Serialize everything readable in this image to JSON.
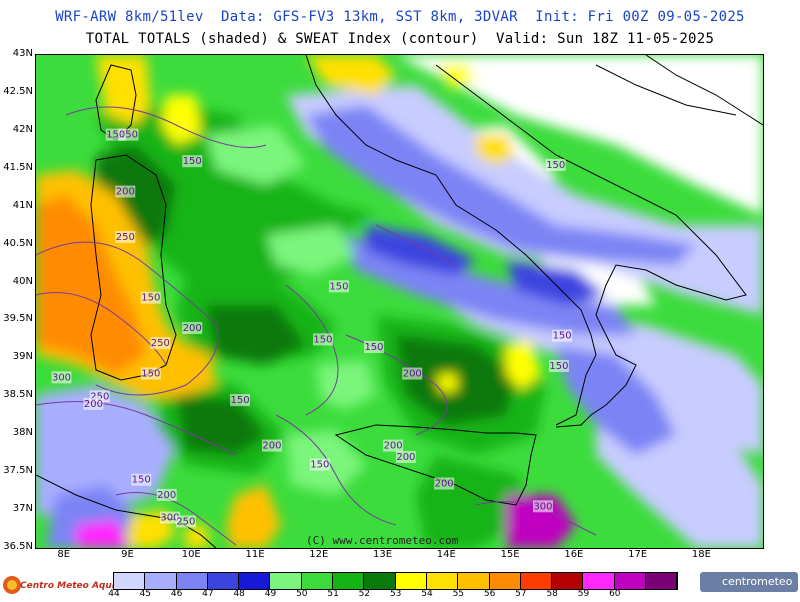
{
  "header": {
    "line1": "WRF-ARW 8km/51lev  Data: GFS-FV3 13km, SST 8km, 3DVAR  Init: Fri 00Z 09-05-2025",
    "line2": "TOTAL TOTALS (shaded) & SWEAT Index (contour)  Valid: Sun 18Z 11-05-2025"
  },
  "axes": {
    "lat_labels": [
      "43N",
      "42.5N",
      "42N",
      "41.5N",
      "41N",
      "40.5N",
      "40N",
      "39.5N",
      "39N",
      "38.5N",
      "38N",
      "37.5N",
      "37N",
      "36.5N"
    ],
    "lon_labels": [
      "8E",
      "9E",
      "10E",
      "11E",
      "12E",
      "13E",
      "14E",
      "15E",
      "16E",
      "17E",
      "18E"
    ]
  },
  "contour_labels": [
    {
      "text": "150",
      "lon": 9.0,
      "lat": 41.95
    },
    {
      "text": "150",
      "lon": 8.8,
      "lat": 41.95
    },
    {
      "text": "150",
      "lon": 10.0,
      "lat": 41.6
    },
    {
      "text": "200",
      "lon": 8.95,
      "lat": 41.2
    },
    {
      "text": "250",
      "lon": 8.95,
      "lat": 40.6
    },
    {
      "text": "150",
      "lon": 9.35,
      "lat": 39.8
    },
    {
      "text": "200",
      "lon": 10.0,
      "lat": 39.4
    },
    {
      "text": "250",
      "lon": 9.5,
      "lat": 39.2
    },
    {
      "text": "150",
      "lon": 9.35,
      "lat": 38.8
    },
    {
      "text": "300",
      "lon": 7.95,
      "lat": 38.75
    },
    {
      "text": "250",
      "lon": 8.55,
      "lat": 38.5
    },
    {
      "text": "200",
      "lon": 8.45,
      "lat": 38.4
    },
    {
      "text": "150",
      "lon": 10.75,
      "lat": 38.45
    },
    {
      "text": "150",
      "lon": 12.3,
      "lat": 39.95
    },
    {
      "text": "150",
      "lon": 12.05,
      "lat": 39.25
    },
    {
      "text": "150",
      "lon": 12.85,
      "lat": 39.15
    },
    {
      "text": "200",
      "lon": 13.45,
      "lat": 38.8
    },
    {
      "text": "150",
      "lon": 15.7,
      "lat": 41.55
    },
    {
      "text": "150",
      "lon": 15.8,
      "lat": 39.3
    },
    {
      "text": "150",
      "lon": 15.75,
      "lat": 38.9
    },
    {
      "text": "200",
      "lon": 11.25,
      "lat": 37.85
    },
    {
      "text": "150",
      "lon": 12.0,
      "lat": 37.6
    },
    {
      "text": "200",
      "lon": 13.15,
      "lat": 37.85
    },
    {
      "text": "200",
      "lon": 13.35,
      "lat": 37.7
    },
    {
      "text": "200",
      "lon": 13.95,
      "lat": 37.35
    },
    {
      "text": "150",
      "lon": 9.2,
      "lat": 37.4
    },
    {
      "text": "200",
      "lon": 9.6,
      "lat": 37.2
    },
    {
      "text": "300",
      "lon": 9.65,
      "lat": 36.9
    },
    {
      "text": "250",
      "lon": 9.9,
      "lat": 36.85
    },
    {
      "text": "300",
      "lon": 15.5,
      "lat": 37.05
    }
  ],
  "watermark": "(C) www.centrometeo.com",
  "legend": {
    "values": [
      "44",
      "45",
      "46",
      "47",
      "48",
      "49",
      "50",
      "51",
      "52",
      "53",
      "54",
      "55",
      "56",
      "57",
      "58",
      "59",
      "60"
    ],
    "colors": [
      "#d2d6ff",
      "#a8aeff",
      "#7c84f5",
      "#3c44e0",
      "#1818d8",
      "#7cf57c",
      "#3cdc3c",
      "#14b414",
      "#0a780a",
      "#ffff00",
      "#ffe000",
      "#ffc000",
      "#ff8c00",
      "#ff3c00",
      "#b40000",
      "#ff28ff",
      "#c000c0",
      "#7a007a"
    ]
  },
  "logos": {
    "left": "Centro Meteo Aquileia",
    "right": "centrometeo"
  }
}
